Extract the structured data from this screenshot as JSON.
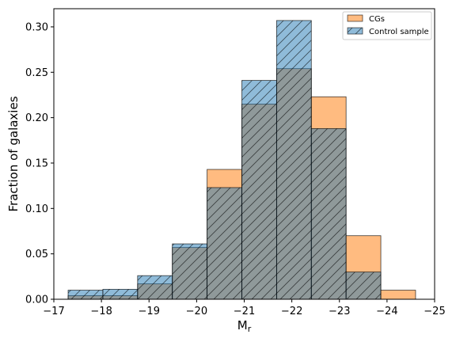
{
  "chart_data": {
    "type": "bar",
    "title": "",
    "xlabel": "M",
    "xlabel_sub": "r",
    "ylabel": "Fraction of galaxies",
    "xlim": [
      -17,
      -25
    ],
    "ylim": [
      0,
      0.32
    ],
    "x_ticks": [
      -17,
      -18,
      -19,
      -20,
      -21,
      -22,
      -23,
      -24,
      -25
    ],
    "x_tick_labels": [
      "−17",
      "−18",
      "−19",
      "−20",
      "−21",
      "−22",
      "−23",
      "−24",
      "−25"
    ],
    "y_ticks": [
      0.0,
      0.05,
      0.1,
      0.15,
      0.2,
      0.25,
      0.3
    ],
    "y_tick_labels": [
      "0.00",
      "0.05",
      "0.10",
      "0.15",
      "0.20",
      "0.25",
      "0.30"
    ],
    "bin_edges": [
      -17.3,
      -18.03,
      -18.76,
      -19.49,
      -20.22,
      -20.95,
      -21.68,
      -22.41,
      -23.14,
      -23.87,
      -24.6
    ],
    "legend_position": "top-right",
    "grid": false,
    "series": [
      {
        "name": "CGs",
        "color": "#ffbb80",
        "hatch": false,
        "values": [
          0.004,
          0.004,
          0.017,
          0.057,
          0.143,
          0.215,
          0.254,
          0.223,
          0.07,
          0.01
        ]
      },
      {
        "name": "Control sample",
        "color": "#1f77b4",
        "hatch": true,
        "values": [
          0.01,
          0.011,
          0.026,
          0.061,
          0.123,
          0.241,
          0.307,
          0.188,
          0.03,
          0.0
        ]
      }
    ]
  }
}
